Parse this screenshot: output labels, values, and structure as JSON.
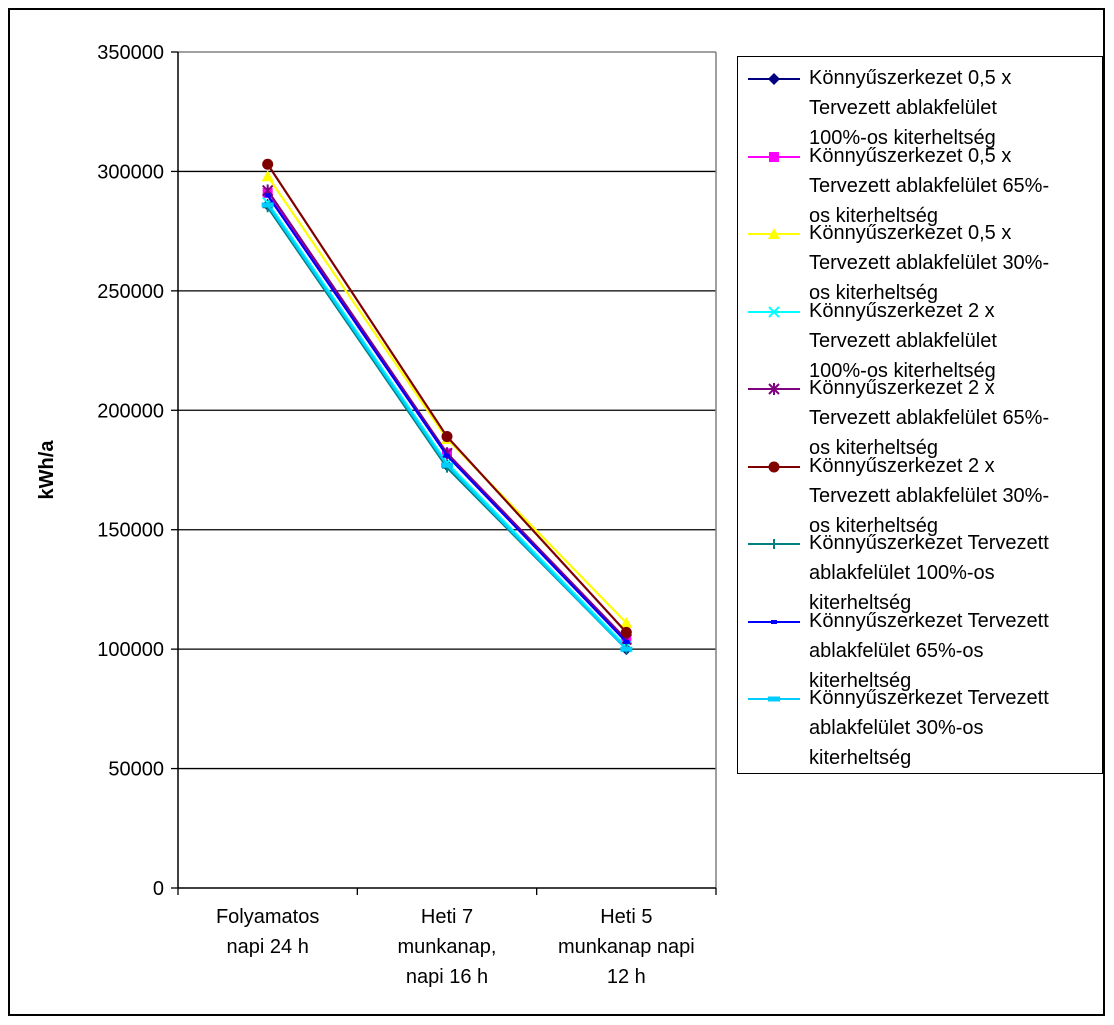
{
  "chart_data": {
    "type": "line",
    "title": "",
    "xlabel": "",
    "ylabel": "kWh/a",
    "ylim": [
      0,
      350000
    ],
    "yticks": [
      "0",
      "50000",
      "100000",
      "150000",
      "200000",
      "250000",
      "300000",
      "350000"
    ],
    "grid": true,
    "legend_position": "right",
    "categories": [
      [
        "Folyamatos",
        "napi 24 h"
      ],
      [
        "Heti 7",
        "munkanap,",
        "napi 16 h"
      ],
      [
        "Heti 5",
        "munkanap napi",
        "12 h"
      ]
    ],
    "series": [
      {
        "name": "Könnyűszerkezet 0,5 x Tervezett ablakfelület 100%-os kiterheltség",
        "label_lines": [
          "Könnyűszerkezet 0,5 x",
          "Tervezett ablakfelület",
          "100%-os kiterheltség"
        ],
        "color": "#000080",
        "marker": "diamond",
        "values": [
          286000,
          177000,
          100000
        ]
      },
      {
        "name": "Könnyűszerkezet 0,5 x Tervezett ablakfelület 65%-os kiterheltség",
        "label_lines": [
          "Könnyűszerkezet 0,5 x",
          "Tervezett ablakfelület 65%-",
          "os kiterheltség"
        ],
        "color": "#FF00FF",
        "marker": "square",
        "values": [
          291000,
          182000,
          104000
        ]
      },
      {
        "name": "Könnyűszerkezet 0,5 x Tervezett ablakfelület 30%-os kiterheltség",
        "label_lines": [
          "Könnyűszerkezet 0,5 x",
          "Tervezett ablakfelület 30%-",
          "os kiterheltség"
        ],
        "color": "#FFFF00",
        "marker": "triangle",
        "values": [
          298000,
          188000,
          111000
        ]
      },
      {
        "name": "Könnyűszerkezet 2 x Tervezett ablakfelület 100%-os kiterheltség",
        "label_lines": [
          "Könnyűszerkezet 2 x",
          "Tervezett ablakfelület",
          "100%-os kiterheltség"
        ],
        "color": "#00FFFF",
        "marker": "x",
        "values": [
          287000,
          178000,
          101000
        ]
      },
      {
        "name": "Könnyűszerkezet 2 x Tervezett ablakfelület 65%-os kiterheltség",
        "label_lines": [
          "Könnyűszerkezet 2 x",
          "Tervezett ablakfelület 65%-",
          "os kiterheltség"
        ],
        "color": "#800080",
        "marker": "star",
        "values": [
          292000,
          182000,
          104000
        ]
      },
      {
        "name": "Könnyűszerkezet 2 x Tervezett ablakfelület 30%-os kiterheltség",
        "label_lines": [
          "Könnyűszerkezet 2 x",
          "Tervezett ablakfelület 30%-",
          "os kiterheltség"
        ],
        "color": "#800000",
        "marker": "circle",
        "values": [
          303000,
          189000,
          107000
        ]
      },
      {
        "name": "Könnyűszerkezet Tervezett ablakfelület 100%-os kiterheltség",
        "label_lines": [
          "Könnyűszerkezet Tervezett",
          "ablakfelület 100%-os",
          "kiterheltség"
        ],
        "color": "#008080",
        "marker": "plus",
        "values": [
          285000,
          176000,
          100000
        ]
      },
      {
        "name": "Könnyűszerkezet Tervezett ablakfelület 65%-os kiterheltség",
        "label_lines": [
          "Könnyűszerkezet Tervezett",
          "ablakfelület 65%-os",
          "kiterheltség"
        ],
        "color": "#0000FF",
        "marker": "dash",
        "values": [
          290000,
          181000,
          103000
        ]
      },
      {
        "name": "Könnyűszerkezet Tervezett ablakfelület 30%-os kiterheltség",
        "label_lines": [
          "Könnyűszerkezet Tervezett",
          "ablakfelület 30%-os",
          "kiterheltség"
        ],
        "color": "#00CCFF",
        "marker": "bar",
        "values": [
          286000,
          177000,
          100000
        ]
      }
    ]
  }
}
